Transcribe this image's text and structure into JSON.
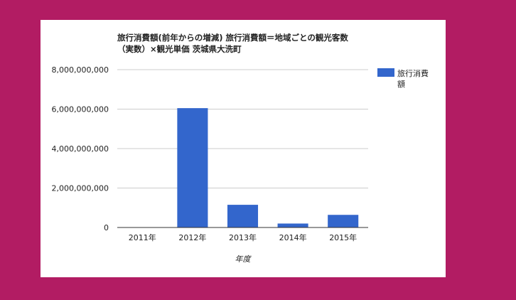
{
  "chart_data": {
    "type": "bar",
    "title": "旅行消費額(前年からの増減) 旅行消費額＝地域ごとの観光客数\n（実数）×観光単価 茨城県大洗町",
    "xlabel": "年度",
    "ylabel": "",
    "categories": [
      "2011年",
      "2012年",
      "2013年",
      "2014年",
      "2015年"
    ],
    "series": [
      {
        "name": "旅行消費額",
        "values": [
          0,
          6050000000,
          1150000000,
          200000000,
          640000000
        ]
      }
    ],
    "ylim": [
      0,
      8000000000
    ],
    "yticks": [
      0,
      2000000000,
      4000000000,
      6000000000,
      8000000000
    ],
    "ytick_labels": [
      "0",
      "2,000,000,000",
      "4,000,000,000",
      "6,000,000,000",
      "8,000,000,000"
    ],
    "grid": true,
    "legend_position": "right",
    "colors": {
      "bar": "#3366cc",
      "grid": "#cccccc",
      "background": "#ffffff",
      "page": "#b21c63"
    }
  }
}
